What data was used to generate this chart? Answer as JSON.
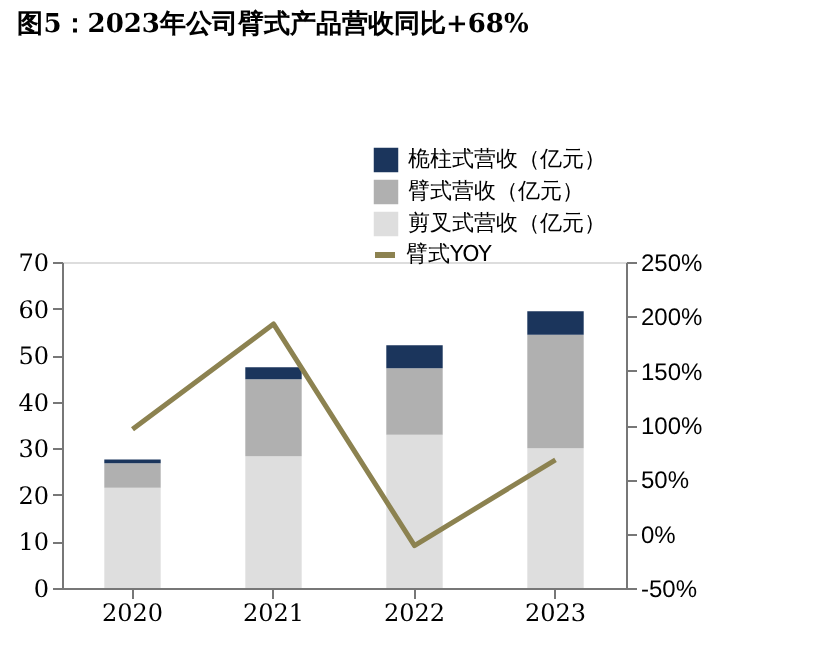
{
  "chart_data": {
    "type": "bar",
    "title": "图5：2023年公司臂式产品营收同比+68%",
    "categories": [
      "2020",
      "2021",
      "2022",
      "2023"
    ],
    "stacked": true,
    "series": [
      {
        "name": "剪叉式营收（亿元）",
        "color": "#dedede",
        "values": [
          21.5,
          28.3,
          32.9,
          30.0
        ]
      },
      {
        "name": "臂式营收（亿元）",
        "color": "#b0b0b0",
        "values": [
          5.3,
          16.5,
          14.3,
          24.4
        ]
      },
      {
        "name": "桅柱式营收（亿元）",
        "color": "#1b355c",
        "values": [
          0.8,
          2.6,
          4.9,
          5.0
        ]
      },
      {
        "name": "臂式YOY",
        "type": "line",
        "axis": "y2",
        "color": "#8c8250",
        "values": [
          96,
          193,
          -11,
          68
        ]
      }
    ],
    "ylim": [
      0,
      70
    ],
    "yticks": [
      0,
      10,
      20,
      30,
      40,
      50,
      60,
      70
    ],
    "y2lim": [
      -50,
      250
    ],
    "y2ticks": [
      {
        "value": -50,
        "label": "-50%"
      },
      {
        "value": 0,
        "label": "0%"
      },
      {
        "value": 50,
        "label": "50%"
      },
      {
        "value": 100,
        "label": "100%"
      },
      {
        "value": 150,
        "label": "150%"
      },
      {
        "value": 200,
        "label": "200%"
      },
      {
        "value": 250,
        "label": "250%"
      }
    ],
    "legend": "top",
    "grid": false
  }
}
